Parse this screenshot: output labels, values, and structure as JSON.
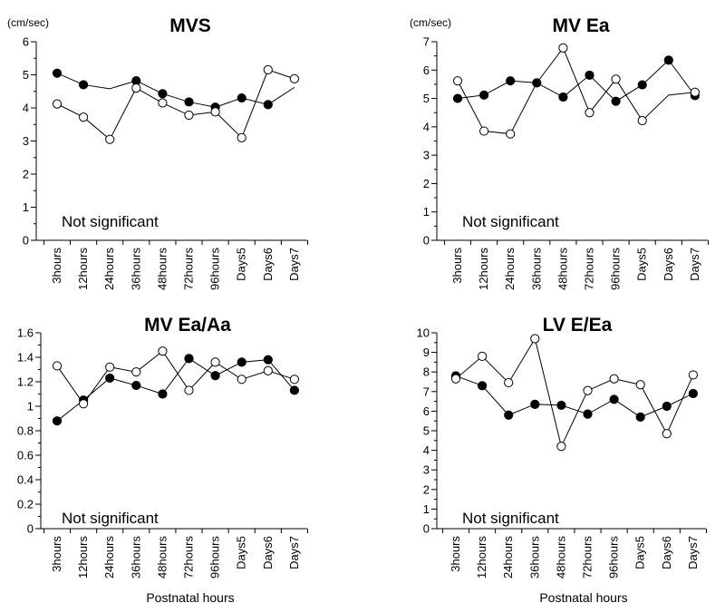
{
  "x_axis_title": "Postnatal hours",
  "chart_data": [
    {
      "type": "line",
      "title": "MVS",
      "unit": "(cm/sec)",
      "annotation": "Not significant",
      "categories": [
        "3hours",
        "12hours",
        "24hours",
        "36hours",
        "48hours",
        "72hours",
        "96hours",
        "Days5",
        "Days6",
        "Days7"
      ],
      "ylim": [
        0,
        6
      ],
      "yticks": [
        "0",
        "1",
        "2",
        "3",
        "4",
        "5",
        "6"
      ],
      "xlabel": "",
      "series": [
        {
          "marker": "filled",
          "values": [
            5.05,
            4.7,
            4.58,
            4.82,
            4.43,
            4.18,
            4.02,
            4.3,
            4.1,
            4.62
          ]
        },
        {
          "marker": "open",
          "values": [
            4.12,
            3.72,
            3.05,
            4.6,
            4.15,
            3.78,
            3.88,
            3.1,
            5.15,
            4.88
          ]
        }
      ],
      "markers_present": [
        [
          true,
          true,
          false,
          true,
          true,
          true,
          true,
          true,
          true,
          false
        ],
        [
          true,
          true,
          true,
          true,
          true,
          true,
          true,
          true,
          true,
          true
        ]
      ]
    },
    {
      "type": "line",
      "title": "MV Ea",
      "unit": "(cm/sec)",
      "annotation": "Not significant",
      "categories": [
        "3hours",
        "12hours",
        "24hours",
        "36hours",
        "48hours",
        "72hours",
        "96hours",
        "Days5",
        "Days6",
        "Days7"
      ],
      "ylim": [
        0,
        7
      ],
      "yticks": [
        "0",
        "1",
        "2",
        "3",
        "4",
        "5",
        "6",
        "7"
      ],
      "xlabel": "",
      "series": [
        {
          "marker": "filled",
          "values": [
            5.0,
            5.12,
            5.62,
            5.55,
            5.05,
            5.82,
            4.9,
            5.48,
            6.35,
            5.1
          ]
        },
        {
          "marker": "open",
          "values": [
            5.62,
            3.85,
            3.75,
            5.55,
            6.78,
            4.5,
            5.68,
            4.22,
            5.12,
            5.22
          ]
        }
      ],
      "markers_present": [
        [
          true,
          true,
          true,
          true,
          true,
          true,
          true,
          true,
          true,
          true
        ],
        [
          true,
          true,
          true,
          false,
          true,
          true,
          true,
          true,
          false,
          true
        ]
      ]
    },
    {
      "type": "line",
      "title": "MV Ea/Aa",
      "unit": "",
      "annotation": "Not significant",
      "categories": [
        "3hours",
        "12hours",
        "24hours",
        "36hours",
        "48hours",
        "72hours",
        "96hours",
        "Days5",
        "Days6",
        "Days7"
      ],
      "ylim": [
        0,
        1.6
      ],
      "yticks": [
        "0",
        "0.2",
        "0.4",
        "0.6",
        "0.8",
        "1",
        "1.2",
        "1.4",
        "1.6"
      ],
      "xlabel": "Postnatal hours",
      "series": [
        {
          "marker": "filled",
          "values": [
            0.88,
            1.05,
            1.23,
            1.17,
            1.1,
            1.39,
            1.25,
            1.36,
            1.38,
            1.13
          ]
        },
        {
          "marker": "open",
          "values": [
            1.33,
            1.02,
            1.32,
            1.28,
            1.45,
            1.13,
            1.36,
            1.22,
            1.29,
            1.22
          ]
        }
      ],
      "markers_present": [
        [
          true,
          true,
          true,
          true,
          true,
          true,
          true,
          true,
          true,
          true
        ],
        [
          true,
          true,
          true,
          true,
          true,
          true,
          true,
          true,
          true,
          true
        ]
      ]
    },
    {
      "type": "line",
      "title": "LV E/Ea",
      "unit": "",
      "annotation": "Not significant",
      "categories": [
        "3hours",
        "12hours",
        "24hours",
        "36hours",
        "48hours",
        "72hours",
        "96hours",
        "Days5",
        "Days6",
        "Days7"
      ],
      "ylim": [
        0,
        10
      ],
      "yticks": [
        "0",
        "1",
        "2",
        "3",
        "4",
        "5",
        "6",
        "7",
        "8",
        "9",
        "10"
      ],
      "xlabel": "Postnatal hours",
      "series": [
        {
          "marker": "filled",
          "values": [
            7.8,
            7.3,
            5.8,
            6.35,
            6.3,
            5.85,
            6.6,
            5.7,
            6.25,
            6.9
          ]
        },
        {
          "marker": "open",
          "values": [
            7.65,
            8.8,
            7.45,
            9.7,
            4.2,
            7.05,
            7.65,
            7.35,
            4.85,
            7.85
          ]
        }
      ],
      "markers_present": [
        [
          true,
          true,
          true,
          true,
          true,
          true,
          true,
          true,
          true,
          true
        ],
        [
          true,
          true,
          true,
          true,
          true,
          true,
          true,
          true,
          true,
          true
        ]
      ]
    }
  ]
}
